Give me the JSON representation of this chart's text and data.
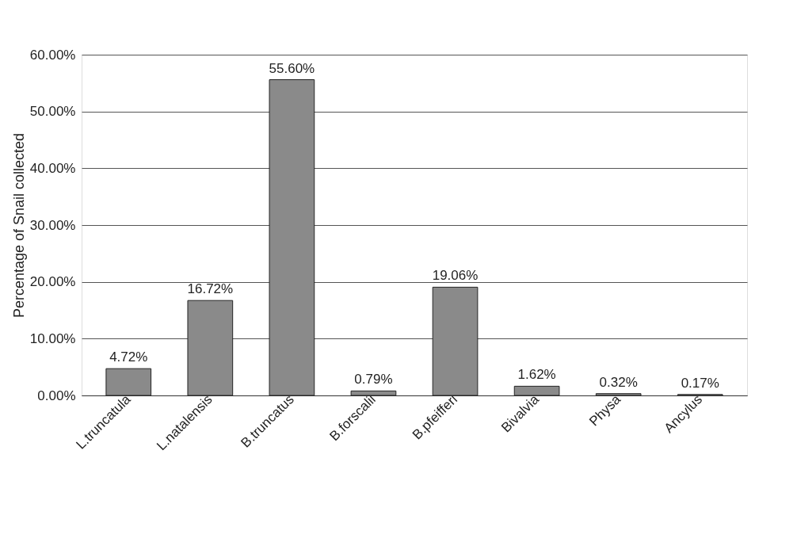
{
  "chart_data": {
    "type": "bar",
    "ylabel": "Percentage of Snail collected",
    "categories": [
      "L.truncatula",
      "L.natalensis",
      "B.truncatus",
      "B.forscalii",
      "B.pfeifferi",
      "Bivalvia",
      "Physa",
      "Ancylus"
    ],
    "values": [
      4.72,
      16.72,
      55.6,
      0.79,
      19.06,
      1.62,
      0.32,
      0.17
    ],
    "value_labels": [
      "4.72%",
      "16.72%",
      "55.60%",
      "0.79%",
      "19.06%",
      "1.62%",
      "0.32%",
      "0.17%"
    ],
    "color": "#8a8a8a",
    "ylim": [
      0,
      60
    ],
    "yticks": [
      {
        "value": 0,
        "label": "0.00%"
      },
      {
        "value": 10,
        "label": "10.00%"
      },
      {
        "value": 20,
        "label": "20.00%"
      },
      {
        "value": 30,
        "label": "30.00%"
      },
      {
        "value": 40,
        "label": "40.00%"
      },
      {
        "value": 50,
        "label": "50.00%"
      },
      {
        "value": 60,
        "label": "60.00%"
      }
    ],
    "grid": "y"
  }
}
